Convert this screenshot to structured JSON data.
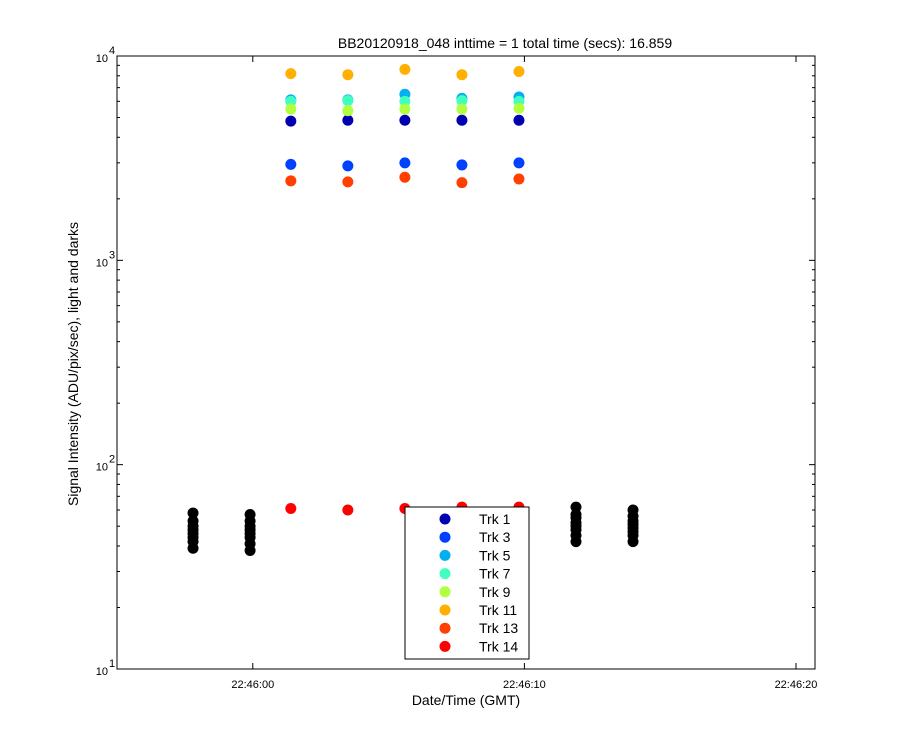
{
  "chart_data": {
    "type": "scatter",
    "title": "BB20120918_048 inttime = 1 total time (secs): 16.859",
    "xlabel": "Date/Time (GMT)",
    "ylabel": "Signal Intensity (ADU/pix/sec), light and darks",
    "x_scale": "time",
    "y_scale": "log",
    "xlim": [
      "22:45:55",
      "22:46:20.7"
    ],
    "ylim": [
      10,
      10000
    ],
    "xticks": [
      "22:46:00",
      "22:46:10",
      "22:46:20"
    ],
    "yticks": [
      {
        "base": "10",
        "exp": "1"
      },
      {
        "base": "10",
        "exp": "2"
      },
      {
        "base": "10",
        "exp": "3"
      },
      {
        "base": "10",
        "exp": "4"
      }
    ],
    "grid": false,
    "legend_position": "bottom-center",
    "series": [
      {
        "name": "Trk 1",
        "color": "#0000b0",
        "points": [
          [
            "22:46:01.4",
            4800
          ],
          [
            "22:46:03.5",
            4850
          ],
          [
            "22:46:05.6",
            4850
          ],
          [
            "22:46:07.7",
            4850
          ],
          [
            "22:46:09.8",
            4850
          ]
        ]
      },
      {
        "name": "Trk 3",
        "color": "#0040ff",
        "points": [
          [
            "22:46:01.4",
            2950
          ],
          [
            "22:46:03.5",
            2900
          ],
          [
            "22:46:05.6",
            3000
          ],
          [
            "22:46:07.7",
            2930
          ],
          [
            "22:46:09.8",
            3000
          ]
        ]
      },
      {
        "name": "Trk 5",
        "color": "#00b0f0",
        "points": [
          [
            "22:46:01.4",
            6100
          ],
          [
            "22:46:03.5",
            6100
          ],
          [
            "22:46:05.6",
            6500
          ],
          [
            "22:46:07.7",
            6200
          ],
          [
            "22:46:09.8",
            6300
          ]
        ]
      },
      {
        "name": "Trk 7",
        "color": "#40ffc0",
        "points": [
          [
            "22:46:01.4",
            6000
          ],
          [
            "22:46:03.5",
            6050
          ],
          [
            "22:46:05.6",
            6000
          ],
          [
            "22:46:07.7",
            6050
          ],
          [
            "22:46:09.8",
            6000
          ]
        ]
      },
      {
        "name": "Trk 9",
        "color": "#b0ff40",
        "points": [
          [
            "22:46:01.4",
            5500
          ],
          [
            "22:46:03.5",
            5400
          ],
          [
            "22:46:05.6",
            5500
          ],
          [
            "22:46:07.7",
            5500
          ],
          [
            "22:46:09.8",
            5550
          ]
        ]
      },
      {
        "name": "Trk 11",
        "color": "#ffb000",
        "points": [
          [
            "22:46:01.4",
            8200
          ],
          [
            "22:46:03.5",
            8100
          ],
          [
            "22:46:05.6",
            8600
          ],
          [
            "22:46:07.7",
            8100
          ],
          [
            "22:46:09.8",
            8400
          ]
        ]
      },
      {
        "name": "Trk 13",
        "color": "#ff4000",
        "points": [
          [
            "22:46:01.4",
            2450
          ],
          [
            "22:46:03.5",
            2420
          ],
          [
            "22:46:05.6",
            2550
          ],
          [
            "22:46:07.7",
            2400
          ],
          [
            "22:46:09.8",
            2500
          ]
        ]
      },
      {
        "name": "Trk 14",
        "color": "#ff0000",
        "points": [
          [
            "22:46:01.4",
            61
          ],
          [
            "22:46:03.5",
            60
          ],
          [
            "22:46:05.6",
            61
          ],
          [
            "22:46:07.7",
            62
          ],
          [
            "22:46:09.8",
            62
          ]
        ]
      },
      {
        "name": "",
        "color": "#000000",
        "points": [
          [
            "22:45:57.8",
            39
          ],
          [
            "22:45:57.8",
            42
          ],
          [
            "22:45:57.8",
            44
          ],
          [
            "22:45:57.8",
            46
          ],
          [
            "22:45:57.8",
            48
          ],
          [
            "22:45:57.8",
            50
          ],
          [
            "22:45:57.8",
            53
          ],
          [
            "22:45:57.8",
            58
          ],
          [
            "22:45:59.9",
            38
          ],
          [
            "22:45:59.9",
            41
          ],
          [
            "22:45:59.9",
            44
          ],
          [
            "22:45:59.9",
            46
          ],
          [
            "22:45:59.9",
            48
          ],
          [
            "22:45:59.9",
            50
          ],
          [
            "22:45:59.9",
            53
          ],
          [
            "22:45:59.9",
            57
          ],
          [
            "22:46:11.9",
            42
          ],
          [
            "22:46:11.9",
            45
          ],
          [
            "22:46:11.9",
            48
          ],
          [
            "22:46:11.9",
            50
          ],
          [
            "22:46:11.9",
            52
          ],
          [
            "22:46:11.9",
            55
          ],
          [
            "22:46:11.9",
            57
          ],
          [
            "22:46:11.9",
            62
          ],
          [
            "22:46:14.0",
            42
          ],
          [
            "22:46:14.0",
            45
          ],
          [
            "22:46:14.0",
            47
          ],
          [
            "22:46:14.0",
            49
          ],
          [
            "22:46:14.0",
            51
          ],
          [
            "22:46:14.0",
            53
          ],
          [
            "22:46:14.0",
            56
          ],
          [
            "22:46:14.0",
            60
          ]
        ]
      }
    ]
  }
}
